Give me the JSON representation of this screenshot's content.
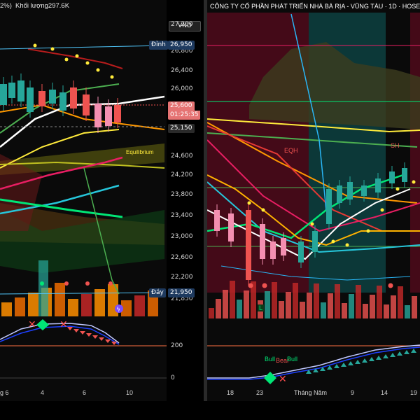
{
  "left_chart": {
    "header_fragment": "2%)",
    "volume_label": "Khối lượng297.6K",
    "currency_button": "VND",
    "y_labels": [
      "27,200",
      "26,800",
      "26,400",
      "26,000",
      "25,600",
      "24,600",
      "24,200",
      "23,800",
      "23,400",
      "23,000",
      "22,600",
      "22,200",
      "21,850"
    ],
    "peak_tag": "Đỉnh",
    "peak_value": "26,950",
    "last_price": "25,600",
    "countdown": "01:25:35",
    "support_value": "25,150",
    "equilibrium_label": "Equilibrium",
    "bottom_tag": "Đáy",
    "bottom_value": "21,950",
    "osc_labels": [
      "200",
      "0"
    ],
    "x_ticks": [
      "g 6",
      "4",
      "6",
      "10"
    ]
  },
  "right_chart": {
    "title": "CÔNG TY CỔ PHẦN PHÁT TRIỂN NHÀ BÀ RỊA - VŨNG TÀU · 1D · HOSE",
    "eqh_label": "EQH",
    "sh_label": "SH",
    "l_label": "L",
    "signals": [
      "Bull",
      "Bear",
      "Bull"
    ],
    "x_ticks": [
      "18",
      "23",
      "Tháng Năm",
      "9",
      "14",
      "19"
    ]
  },
  "colors": {
    "background": "#0a0a0a",
    "bull": "#26a69a",
    "bear": "#ef5350",
    "peak_tag_bg": "#1e3a5f",
    "support_tag_bg": "#2a2a2a",
    "last_price_bg": "#e57373"
  }
}
